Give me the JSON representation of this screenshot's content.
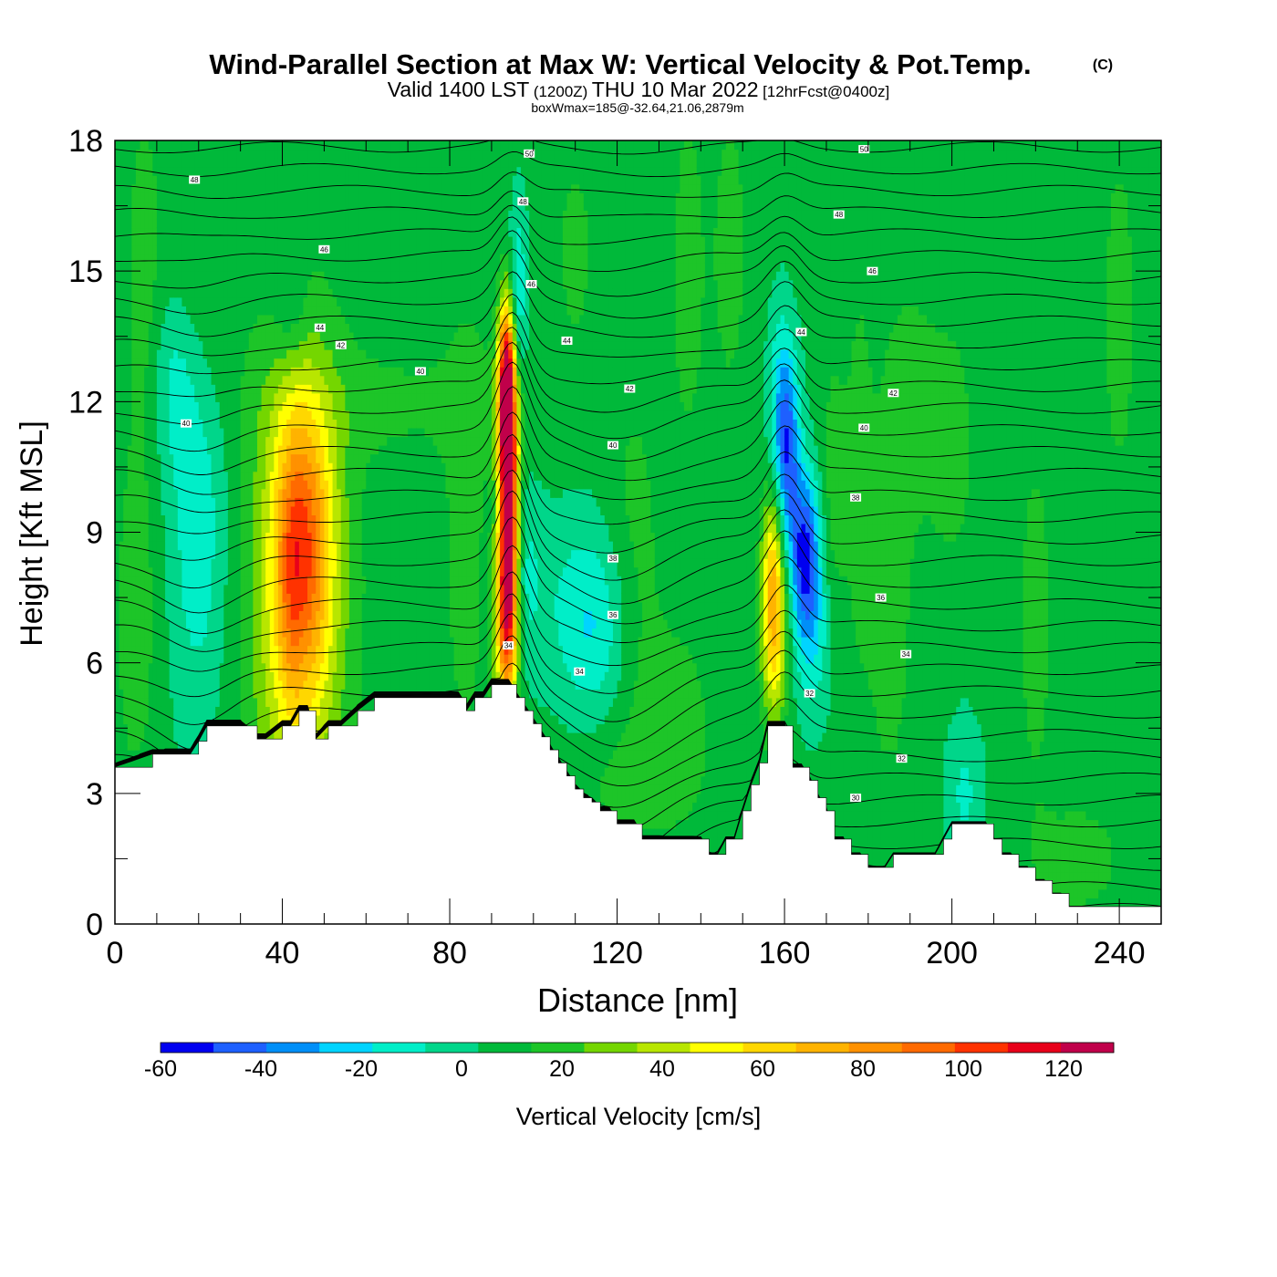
{
  "title": {
    "main": "Wind-Parallel Section at Max W: Vertical Velocity & Pot.Temp.",
    "copyright": "(C)",
    "valid_prefix": "Valid 1400 LST",
    "valid_utc": "(1200Z)",
    "valid_date": "THU 10 Mar 2022",
    "forecast": "[12hrFcst@0400z]",
    "subtitle": "boxWmax=185@-32.64,21.06,2879m"
  },
  "chart_data": {
    "type": "heatmap",
    "xlabel": "Distance [nm]",
    "ylabel": "Height [Kft MSL]",
    "xlim": [
      0,
      250
    ],
    "ylim": [
      0,
      18
    ],
    "x_ticks": [
      "0",
      "40",
      "80",
      "120",
      "160",
      "200",
      "240"
    ],
    "x_tick_values": [
      0,
      40,
      80,
      120,
      160,
      200,
      240
    ],
    "y_ticks": [
      "0",
      "3",
      "6",
      "9",
      "12",
      "15",
      "18"
    ],
    "y_tick_values": [
      0,
      3,
      6,
      9,
      12,
      15,
      18
    ],
    "colorbar": {
      "label": "Vertical Velocity [cm/s]",
      "tick_labels": [
        "-60",
        "-40",
        "-20",
        "0",
        "20",
        "40",
        "60",
        "80",
        "100",
        "120"
      ],
      "tick_values": [
        -60,
        -40,
        -20,
        0,
        20,
        40,
        60,
        80,
        100,
        120
      ],
      "bounds": [
        -60,
        -50,
        -40,
        -30,
        -20,
        -10,
        0,
        10,
        20,
        30,
        40,
        50,
        60,
        70,
        80,
        90,
        100,
        110,
        120,
        130
      ],
      "colors": [
        "#0000f0",
        "#1e60ff",
        "#008ff8",
        "#00d4ff",
        "#00eec8",
        "#00d68a",
        "#00b93a",
        "#1dc528",
        "#74d600",
        "#b8e600",
        "#ffff00",
        "#ffd700",
        "#ffb300",
        "#ff9100",
        "#ff6a00",
        "#ff3200",
        "#e8001a",
        "#c0004a"
      ]
    },
    "terrain": {
      "x": [
        0,
        9,
        18,
        20,
        22,
        30,
        34,
        36,
        40,
        42,
        44,
        46,
        48,
        51,
        54,
        58,
        62,
        82,
        84,
        86,
        88,
        90,
        94,
        96,
        98,
        100,
        102,
        104,
        106,
        108,
        110,
        112,
        114,
        116,
        118,
        120,
        122,
        124,
        126,
        128,
        130,
        132,
        134,
        136,
        140,
        142,
        144,
        146,
        148,
        150,
        152,
        154,
        156,
        158,
        160,
        162,
        164,
        166,
        168,
        170,
        172,
        174,
        176,
        178,
        180,
        182,
        184,
        186,
        188,
        190,
        192,
        194,
        196,
        198,
        200,
        202,
        204,
        206,
        208,
        210,
        212,
        214,
        216,
        218,
        220,
        222,
        224,
        226,
        228,
        230,
        232,
        234,
        236,
        238,
        240,
        242,
        244,
        246,
        248,
        250
      ],
      "height_kft": [
        3.6,
        3.9,
        3.9,
        4.2,
        4.55,
        4.55,
        4.25,
        4.25,
        4.55,
        4.55,
        4.9,
        4.9,
        4.25,
        4.55,
        4.55,
        4.9,
        5.2,
        5.2,
        4.9,
        5.2,
        5.2,
        5.5,
        5.5,
        5.2,
        4.9,
        4.6,
        4.3,
        4.0,
        3.7,
        3.4,
        3.1,
        2.9,
        2.8,
        2.6,
        2.6,
        2.3,
        2.3,
        2.3,
        1.95,
        1.95,
        1.95,
        1.95,
        1.95,
        1.95,
        1.95,
        1.6,
        1.6,
        1.95,
        1.95,
        2.6,
        3.2,
        3.7,
        4.55,
        4.55,
        4.55,
        3.6,
        3.6,
        3.3,
        2.9,
        2.6,
        1.95,
        1.95,
        1.6,
        1.6,
        1.3,
        1.3,
        1.3,
        1.6,
        1.6,
        1.6,
        1.6,
        1.6,
        1.6,
        1.95,
        2.3,
        2.3,
        2.3,
        2.3,
        2.3,
        1.95,
        1.6,
        1.6,
        1.3,
        1.3,
        1.0,
        1.0,
        0.7,
        0.7,
        0.4,
        0.4,
        0.4,
        0.4,
        0.4,
        0.4,
        0.4,
        0.4,
        0.4,
        0.4,
        0.4,
        0.4,
        0.4
      ]
    },
    "w_features": [
      {
        "x": 94,
        "y": 10,
        "sx": 1.6,
        "sy": 2.4,
        "w": 130
      },
      {
        "x": 93.5,
        "y": 12.5,
        "sx": 1.4,
        "sy": 1.2,
        "w": 70
      },
      {
        "x": 93.5,
        "y": 7,
        "sx": 2,
        "sy": 1.5,
        "w": 70
      },
      {
        "x": 96,
        "y": 14.3,
        "sx": 1.6,
        "sy": 1.5,
        "w": -28
      },
      {
        "x": 96,
        "y": 8,
        "sx": 4,
        "sy": 1.5,
        "w": -18
      },
      {
        "x": 45,
        "y": 8.8,
        "sx": 5,
        "sy": 2.3,
        "w": 55
      },
      {
        "x": 42,
        "y": 7.8,
        "sx": 2,
        "sy": 2,
        "w": 12
      },
      {
        "x": 43.5,
        "y": 7,
        "sx": 7,
        "sy": 4,
        "w": 30
      },
      {
        "x": 43.5,
        "y": 7.5,
        "sx": 12,
        "sy": 5.5,
        "w": 10
      },
      {
        "x": 20,
        "y": 9.5,
        "sx": 5,
        "sy": 3.5,
        "w": -22
      },
      {
        "x": 14,
        "y": 12.5,
        "sx": 4,
        "sy": 1.5,
        "w": -14
      },
      {
        "x": 42,
        "y": 14,
        "sx": 3,
        "sy": 1,
        "w": -12
      },
      {
        "x": 20,
        "y": 14.5,
        "sx": 5,
        "sy": 2.5,
        "w": 12
      },
      {
        "x": 5,
        "y": 7,
        "sx": 4,
        "sy": 3,
        "w": 12
      },
      {
        "x": 7,
        "y": 15,
        "sx": 3,
        "sy": 3,
        "w": 12
      },
      {
        "x": 70,
        "y": 12,
        "sx": 25,
        "sy": 1,
        "w": 8
      },
      {
        "x": 84,
        "y": 9,
        "sx": 4,
        "sy": 4,
        "w": 12
      },
      {
        "x": 115,
        "y": 6.5,
        "sx": 6,
        "sy": 1.5,
        "w": -15
      },
      {
        "x": 112,
        "y": 7.5,
        "sx": 8,
        "sy": 1.5,
        "w": -12
      },
      {
        "x": 124,
        "y": 8,
        "sx": 5,
        "sy": 3,
        "w": 12
      },
      {
        "x": 135,
        "y": 4.5,
        "sx": 7,
        "sy": 2,
        "w": 10
      },
      {
        "x": 120,
        "y": 3.3,
        "sx": 9,
        "sy": 1,
        "w": 8
      },
      {
        "x": 157.5,
        "y": 6.8,
        "sx": 2.1,
        "sy": 1.5,
        "w": 55
      },
      {
        "x": 157,
        "y": 8.5,
        "sx": 1.8,
        "sy": 1.2,
        "w": 25
      },
      {
        "x": 165,
        "y": 8.5,
        "sx": 2.5,
        "sy": 1.3,
        "w": -55
      },
      {
        "x": 161,
        "y": 10.8,
        "sx": 2,
        "sy": 1.5,
        "w": -42
      },
      {
        "x": 159,
        "y": 12,
        "sx": 2,
        "sy": 1.5,
        "w": -22
      },
      {
        "x": 167,
        "y": 6.5,
        "sx": 3,
        "sy": 1.3,
        "w": -18
      },
      {
        "x": 172,
        "y": 10,
        "sx": 2.5,
        "sy": 2.5,
        "w": 12
      },
      {
        "x": 178,
        "y": 10.5,
        "sx": 2,
        "sy": 3,
        "w": 12
      },
      {
        "x": 190,
        "y": 12,
        "sx": 5,
        "sy": 2,
        "w": 12
      },
      {
        "x": 185,
        "y": 7,
        "sx": 4,
        "sy": 3,
        "w": 12
      },
      {
        "x": 200,
        "y": 11,
        "sx": 4,
        "sy": 2,
        "w": 12
      },
      {
        "x": 220,
        "y": 7,
        "sx": 3,
        "sy": 3,
        "w": 12
      },
      {
        "x": 203,
        "y": 3,
        "sx": 3,
        "sy": 1.2,
        "w": -15
      },
      {
        "x": 230,
        "y": 1.5,
        "sx": 8,
        "sy": 1,
        "w": 12
      },
      {
        "x": 240,
        "y": 14,
        "sx": 3,
        "sy": 3,
        "w": 12
      },
      {
        "x": 110,
        "y": 15.5,
        "sx": 3,
        "sy": 1.5,
        "w": 12
      },
      {
        "x": 137,
        "y": 15,
        "sx": 3,
        "sy": 3,
        "w": 12
      },
      {
        "x": 147,
        "y": 15.5,
        "sx": 3,
        "sy": 2.5,
        "w": 12
      }
    ],
    "contour_labels": [
      {
        "text": "48",
        "x": 19,
        "y": 17.1
      },
      {
        "text": "46",
        "x": 50,
        "y": 15.5
      },
      {
        "text": "44",
        "x": 49,
        "y": 13.7
      },
      {
        "text": "42",
        "x": 54,
        "y": 13.3
      },
      {
        "text": "40",
        "x": 73,
        "y": 12.7
      },
      {
        "text": "40",
        "x": 17,
        "y": 11.5
      },
      {
        "text": "50",
        "x": 99,
        "y": 17.7
      },
      {
        "text": "48",
        "x": 97.5,
        "y": 16.6
      },
      {
        "text": "46",
        "x": 99.5,
        "y": 14.7
      },
      {
        "text": "44",
        "x": 108,
        "y": 13.4
      },
      {
        "text": "42",
        "x": 123,
        "y": 12.3
      },
      {
        "text": "40",
        "x": 119,
        "y": 11
      },
      {
        "text": "38",
        "x": 119,
        "y": 8.4
      },
      {
        "text": "36",
        "x": 119,
        "y": 7.1
      },
      {
        "text": "34",
        "x": 94,
        "y": 6.4
      },
      {
        "text": "34",
        "x": 111,
        "y": 5.8
      },
      {
        "text": "50",
        "x": 179,
        "y": 17.8
      },
      {
        "text": "48",
        "x": 173,
        "y": 16.3
      },
      {
        "text": "46",
        "x": 181,
        "y": 15
      },
      {
        "text": "44",
        "x": 164,
        "y": 13.6
      },
      {
        "text": "42",
        "x": 186,
        "y": 12.2
      },
      {
        "text": "40",
        "x": 179,
        "y": 11.4
      },
      {
        "text": "38",
        "x": 177,
        "y": 9.8
      },
      {
        "text": "36",
        "x": 183,
        "y": 7.5
      },
      {
        "text": "34",
        "x": 189,
        "y": 6.2
      },
      {
        "text": "32",
        "x": 166,
        "y": 5.3
      },
      {
        "text": "32",
        "x": 188,
        "y": 3.8
      },
      {
        "text": "30",
        "x": 177,
        "y": 2.9
      }
    ]
  }
}
